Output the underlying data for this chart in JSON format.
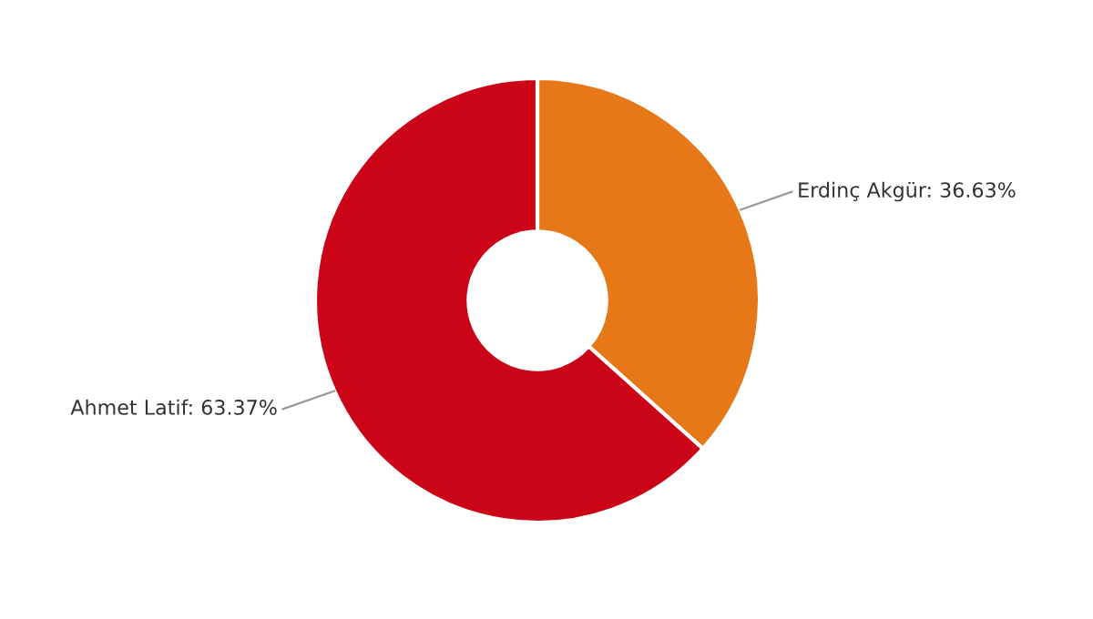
{
  "chart_data": {
    "type": "donut",
    "categories": [
      "Erdinç Akgür",
      "Ahmet Latif"
    ],
    "values": [
      36.63,
      63.37
    ],
    "colors": [
      "#e77817",
      "#cc0418"
    ],
    "value_labels": [
      "36.63%",
      "63.37%"
    ],
    "legend": false
  }
}
